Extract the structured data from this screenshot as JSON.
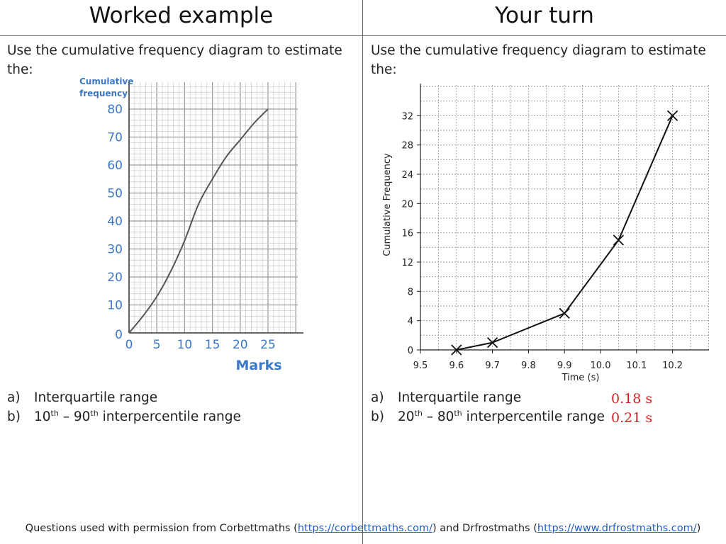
{
  "left": {
    "header": "Worked example",
    "question": "Use the cumulative frequency diagram to estimate the:",
    "parts": [
      {
        "marker": "a)",
        "text": "Interquartile range"
      },
      {
        "marker": "b)",
        "p1": "10",
        "s1": "th",
        "dash": " – ",
        "p2": "90",
        "s2": "th",
        "rest": " interpercentile range"
      }
    ],
    "chart_data": {
      "type": "line",
      "ylabel": "Cumulative frequency",
      "xlabel": "Marks",
      "xlim": [
        0,
        25
      ],
      "ylim": [
        0,
        80
      ],
      "xticks": [
        "0",
        "5",
        "10",
        "15",
        "20",
        "25"
      ],
      "yticks": [
        "0",
        "10",
        "20",
        "30",
        "40",
        "50",
        "60",
        "70",
        "80"
      ],
      "grid": true,
      "x": [
        0,
        2.5,
        5,
        7.5,
        10,
        12.5,
        15,
        17.5,
        20,
        22.5,
        25
      ],
      "y": [
        0,
        6,
        13,
        22,
        33,
        46,
        55,
        63,
        69,
        75,
        80
      ]
    }
  },
  "right": {
    "header": "Your turn",
    "question": "Use the cumulative frequency diagram to estimate the:",
    "parts": [
      {
        "marker": "a)",
        "text": "Interquartile range"
      },
      {
        "marker": "b)",
        "p1": "20",
        "s1": "th",
        "dash": " – ",
        "p2": "80",
        "s2": "th",
        "rest": " interpercentile range"
      }
    ],
    "answers": [
      "0.18 s",
      "0.21 s"
    ],
    "answer_color": "#d42020",
    "chart_data": {
      "type": "line",
      "ylabel": "Cumulative Frequency",
      "xlabel": "Time (s)",
      "xlim": [
        9.5,
        10.25
      ],
      "ylim": [
        0,
        36
      ],
      "xticks": [
        "9.5",
        "9.6",
        "9.7",
        "9.8",
        "9.9",
        "10.0",
        "10.1",
        "10.2"
      ],
      "yticks": [
        "0",
        "4",
        "8",
        "12",
        "16",
        "20",
        "24",
        "28",
        "32"
      ],
      "grid": true,
      "markers": "x",
      "x": [
        9.6,
        9.7,
        9.9,
        10.05,
        10.2
      ],
      "y": [
        0,
        1,
        5,
        15,
        32
      ]
    }
  },
  "footer": {
    "t1": "Questions used with permission from Corbettmaths (",
    "link1": "https://corbettmaths.com/",
    "t2": ") and Drfrostmaths (",
    "link2": "https://www.drfrostmaths.com/",
    "t3": ")"
  }
}
